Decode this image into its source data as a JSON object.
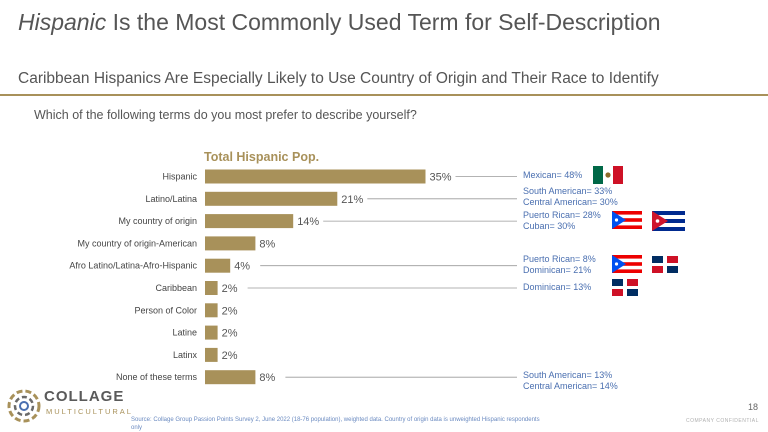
{
  "header": {
    "title_emphasis": "Hispanic",
    "title_rest": " Is the Most Commonly Used Term for Self-Description",
    "subtitle": "Caribbean Hispanics Are Especially Likely to Use Country of Origin and Their Race to Identify",
    "question": "Which of the following terms do you most prefer to describe yourself?"
  },
  "chart_data": {
    "type": "bar",
    "orientation": "horizontal",
    "title": "Total Hispanic Pop.",
    "categories": [
      "Hispanic",
      "Latino/Latina",
      "My country of origin",
      "My country of origin-American",
      "Afro Latino/Latina-Afro-Hispanic",
      "Caribbean",
      "Person of Color",
      "Latine",
      "Latinx",
      "None of these terms"
    ],
    "values": [
      35,
      21,
      14,
      8,
      4,
      2,
      2,
      2,
      2,
      8
    ],
    "value_labels": [
      "35%",
      "21%",
      "14%",
      "8%",
      "4%",
      "2%",
      "2%",
      "2%",
      "2%",
      "8%"
    ],
    "unit": "%",
    "bar_color": "#a8915a",
    "grid": false
  },
  "callouts": [
    {
      "category": "Hispanic",
      "lines": [
        "Mexican= 48%"
      ],
      "flags": [
        "mexico-flag"
      ]
    },
    {
      "category": "Latino/Latina",
      "lines": [
        "South American= 33%",
        "Central American= 30%"
      ],
      "flags": []
    },
    {
      "category": "My country of origin",
      "lines": [
        "Puerto Rican= 28%",
        "Cuban= 30%"
      ],
      "flags": [
        "puerto-rico-flag",
        "cuba-flag"
      ]
    },
    {
      "category": "Afro Latino/Latina-Afro-Hispanic",
      "lines": [
        "Puerto Rican= 8%",
        "Dominican= 21%"
      ],
      "flags": [
        "puerto-rico-flag",
        "dominican-republic-flag"
      ]
    },
    {
      "category": "Caribbean",
      "lines": [
        "Dominican= 13%"
      ],
      "flags": [
        "dominican-republic-flag"
      ]
    },
    {
      "category": "None of these terms",
      "lines": [
        "South American= 13%",
        "Central American= 14%"
      ],
      "flags": []
    }
  ],
  "footer": {
    "logo_line1": "COLLAGE",
    "logo_line2": "MULTICULTURAL",
    "source": "Source: Collage Group Passion Points Survey 2, June 2022 (18-76 population), weighted data. Country of origin data is unweighted Hispanic respondents only",
    "page_number": "18",
    "confidential": "COMPANY CONFIDENTIAL"
  },
  "colors": {
    "accent": "#a8915a",
    "callout_text": "#4a6fb0"
  }
}
